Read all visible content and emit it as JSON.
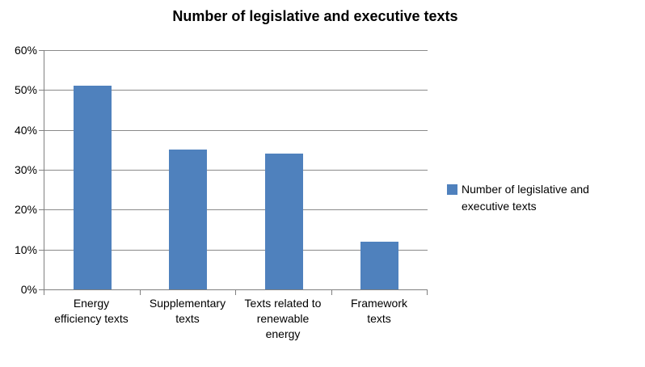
{
  "chart_data": {
    "type": "bar",
    "title": "Number of legislative and executive texts",
    "categories": [
      "Energy efficiency texts",
      "Supplementary texts",
      "Texts related to renewable energy",
      "Framework texts"
    ],
    "category_lines": [
      [
        "Energy",
        "efficiency texts"
      ],
      [
        "Supplementary",
        "texts"
      ],
      [
        "Texts related to",
        "renewable",
        "energy"
      ],
      [
        "Framework",
        "texts"
      ]
    ],
    "values": [
      51,
      35,
      34,
      12
    ],
    "xlabel": "",
    "ylabel": "",
    "ylim": [
      0,
      60
    ],
    "y_tick_step": 10,
    "y_tick_labels": [
      "0%",
      "10%",
      "20%",
      "30%",
      "40%",
      "50%",
      "60%"
    ],
    "grid": true,
    "legend_position": "right",
    "legend_label": "Number of legislative and executive texts",
    "bar_color": "#4f81bd",
    "gridline_color": "#8a8a8a",
    "axis_color": "#808080",
    "text_color": "#000000"
  }
}
